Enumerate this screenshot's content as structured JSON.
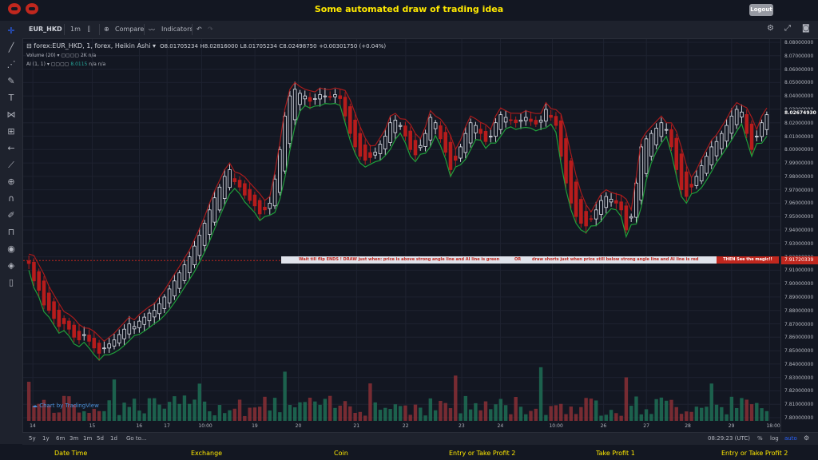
{
  "header": {
    "title": "Some automated draw of trading idea",
    "logout": "Logout"
  },
  "toolbar": {
    "symbol": "EUR_HKD",
    "interval": "1m",
    "compare": "Compare",
    "indicators": "Indicators"
  },
  "legend": {
    "main": "forex:EUR_HKD, 1, forex, Heikin Ashi",
    "open": "O8.01705234",
    "high": "H8.02816000",
    "low": "L8.01705234",
    "close": "C8.02498750",
    "change": "+0.00301750 (+0.04%)",
    "volume_label": "Volume (20)",
    "volume_value": "2K",
    "volume_na": "n/a",
    "ai_label": "AI (1, 1)",
    "ai_value": "8.0115",
    "ai_na1": "n/a",
    "ai_na2": "n/a"
  },
  "price_axis": {
    "labels": [
      "8.08000000",
      "8.07000000",
      "8.06000000",
      "8.05000000",
      "8.04000000",
      "8.03000000",
      "8.02000000",
      "8.01000000",
      "8.00000000",
      "7.99000000",
      "7.98000000",
      "7.97000000",
      "7.96000000",
      "7.95000000",
      "7.94000000",
      "7.93000000",
      "7.92000000",
      "7.91000000",
      "7.90000000",
      "7.89000000",
      "7.88000000",
      "7.87000000",
      "7.86000000",
      "7.85000000",
      "7.84000000",
      "7.83000000",
      "7.82000000",
      "7.81000000",
      "7.80000000"
    ],
    "current_price": "8.02674930",
    "line_price": "7.91720339"
  },
  "banner": {
    "part1": "Wait till flip ENDS  !    DRAW just when:  price is above strong angle line and AI line is green",
    "part2": "OR",
    "part3": "draw shorts just when price still below strong angle line and AI line is red",
    "cta": "THEN See the magic!!"
  },
  "watermark": "Chart by TradingView",
  "time_axis": [
    "14",
    "15",
    "16",
    "17",
    "10:00",
    "19",
    "20",
    "21",
    "22",
    "23",
    "24",
    "10:00",
    "26",
    "27",
    "28",
    "29",
    "18:00"
  ],
  "bottom_bar": {
    "ranges": [
      "5y",
      "1y",
      "6m",
      "3m",
      "1m",
      "5d",
      "1d"
    ],
    "goto": "Go to...",
    "clock": "08:29:23 (UTC)",
    "percent": "%",
    "log": "log",
    "auto": "auto"
  },
  "footer": [
    "Date Time",
    "Exchange",
    "Coin",
    "Entry or Take Profit 2",
    "Take Profit 1",
    "Entry or Take Profit 2"
  ],
  "colors": {
    "up": "#26a69a",
    "down": "#ef5350",
    "green_line": "#1f9e3a",
    "red_line": "#b71c1c",
    "title": "#ffe900"
  },
  "chart_data": {
    "type": "candlestick",
    "symbol": "EUR_HKD",
    "ylim": [
      7.795,
      8.083
    ],
    "close": [
      7.915,
      7.902,
      7.895,
      7.884,
      7.88,
      7.874,
      7.868,
      7.87,
      7.866,
      7.86,
      7.858,
      7.862,
      7.857,
      7.852,
      7.848,
      7.852,
      7.855,
      7.858,
      7.862,
      7.866,
      7.87,
      7.868,
      7.872,
      7.875,
      7.878,
      7.88,
      7.885,
      7.89,
      7.896,
      7.902,
      7.908,
      7.914,
      7.92,
      7.928,
      7.936,
      7.945,
      7.955,
      7.964,
      7.972,
      7.98,
      7.985,
      7.976,
      7.972,
      7.966,
      7.962,
      7.958,
      7.952,
      7.955,
      7.96,
      7.978,
      8.0,
      8.025,
      8.04,
      8.045,
      8.042,
      8.04,
      8.036,
      8.038,
      8.041,
      8.04,
      8.039,
      8.041,
      8.038,
      8.025,
      8.012,
      8.002,
      7.995,
      7.992,
      7.994,
      7.998,
      8.004,
      8.01,
      8.02,
      8.022,
      8.018,
      8.01,
      8.0,
      7.996,
      8.003,
      8.012,
      8.024,
      8.02,
      8.008,
      7.998,
      7.985,
      7.992,
      8.002,
      8.012,
      8.02,
      8.018,
      8.012,
      8.006,
      8.01,
      8.02,
      8.026,
      8.024,
      8.022,
      8.02,
      8.022,
      8.024,
      8.021,
      8.019,
      8.022,
      8.03,
      8.024,
      8.018,
      7.995,
      7.975,
      7.96,
      7.95,
      7.945,
      7.943,
      7.948,
      7.955,
      7.962,
      7.965,
      7.963,
      7.96,
      7.955,
      7.94,
      7.95,
      7.975,
      8.002,
      8.008,
      8.012,
      8.016,
      8.02,
      8.015,
      8.002,
      7.985,
      7.97,
      7.965,
      7.972,
      7.98,
      7.988,
      7.995,
      8.002,
      8.006,
      8.012,
      8.018,
      8.025,
      8.03,
      8.028,
      8.012,
      8.0,
      8.01,
      8.02,
      8.026
    ],
    "volume_range": [
      0,
      2000
    ]
  }
}
